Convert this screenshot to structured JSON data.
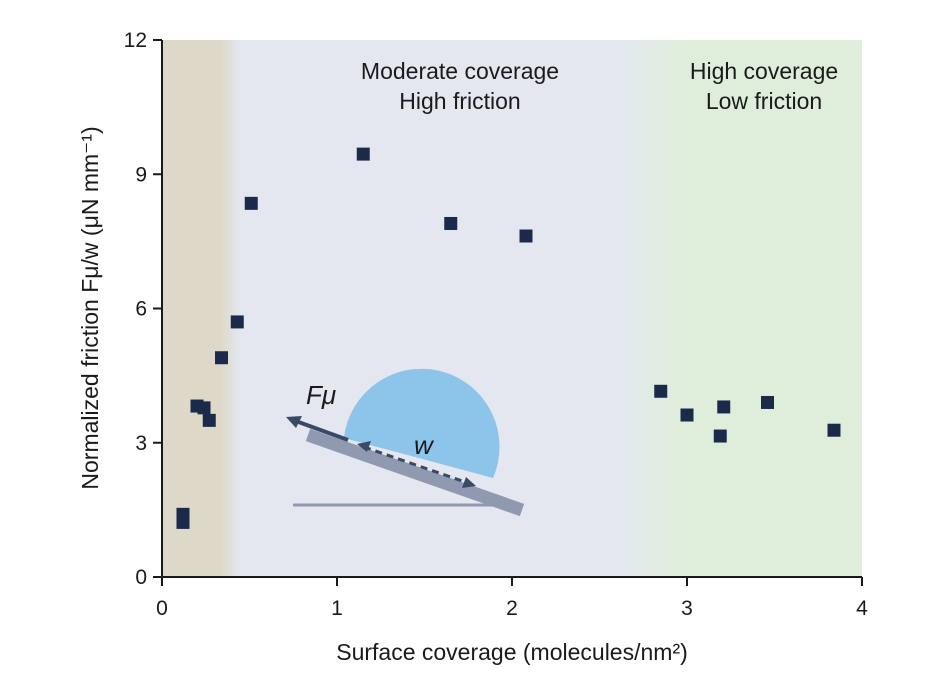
{
  "chart_data": {
    "type": "scatter",
    "xlabel": "Surface coverage (molecules/nm²)",
    "ylabel": "Normalized friction Fμ/w (μN mm⁻¹)",
    "xlim": [
      0,
      4
    ],
    "ylim": [
      0,
      12
    ],
    "x_ticks": [
      "0",
      "1",
      "2",
      "3",
      "4"
    ],
    "y_ticks": [
      "0",
      "3",
      "6",
      "9",
      "12"
    ],
    "grid": false,
    "marker": "square",
    "marker_color": "#1b2a4a",
    "regions": [
      {
        "line1": "",
        "line2": "",
        "x_range": [
          0,
          0.43
        ],
        "color": "#ddd8c8"
      },
      {
        "line1": "Moderate coverage",
        "line2": "High friction",
        "x_range": [
          0.43,
          2.7
        ],
        "color": "#e4e7f0"
      },
      {
        "line1": "High coverage",
        "line2": "Low friction",
        "x_range": [
          2.7,
          4
        ],
        "color": "#dfeedb"
      }
    ],
    "points": [
      {
        "x": 0.12,
        "y": 1.22
      },
      {
        "x": 0.12,
        "y": 1.4
      },
      {
        "x": 0.2,
        "y": 3.82
      },
      {
        "x": 0.24,
        "y": 3.78
      },
      {
        "x": 0.27,
        "y": 3.5
      },
      {
        "x": 0.34,
        "y": 4.9
      },
      {
        "x": 0.43,
        "y": 5.7
      },
      {
        "x": 0.51,
        "y": 8.35
      },
      {
        "x": 1.15,
        "y": 9.45
      },
      {
        "x": 1.65,
        "y": 7.9
      },
      {
        "x": 2.08,
        "y": 7.62
      },
      {
        "x": 2.85,
        "y": 4.15
      },
      {
        "x": 3.0,
        "y": 3.62
      },
      {
        "x": 3.19,
        "y": 3.15
      },
      {
        "x": 3.21,
        "y": 3.8
      },
      {
        "x": 3.46,
        "y": 3.9
      },
      {
        "x": 3.84,
        "y": 3.28
      }
    ]
  },
  "inset": {
    "force_label": "Fμ",
    "weight_label": "w",
    "droplet_color": "#8cc4ea",
    "tilt_color": "#8f9ab0",
    "arrow_color": "#3a4a66"
  },
  "colors": {
    "axis": "#1a1a1a",
    "band_left": "#ddd8c8",
    "band_mid": "#e4e7f0",
    "band_right": "#dfeedb"
  }
}
